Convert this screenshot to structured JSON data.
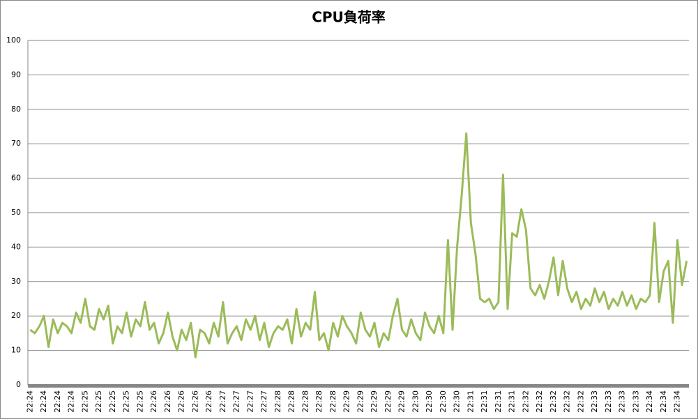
{
  "chart_data": {
    "type": "line",
    "title": "CPU負荷率",
    "color": "#9bbb59",
    "ylim": [
      0,
      100
    ],
    "yticks": [
      0,
      10,
      20,
      30,
      40,
      50,
      60,
      70,
      80,
      90,
      100
    ],
    "grid": true,
    "categories": [
      "22:24",
      null,
      null,
      "22:24",
      null,
      null,
      "22:24",
      null,
      null,
      "22:24",
      null,
      null,
      "22:25",
      null,
      null,
      "22:25",
      null,
      null,
      "22:25",
      null,
      null,
      "22:25",
      null,
      null,
      "22:25",
      null,
      null,
      "22:26",
      null,
      null,
      "22:26",
      null,
      null,
      "22:26",
      null,
      null,
      "22:26",
      null,
      null,
      "22:26",
      null,
      null,
      "22:27",
      null,
      null,
      "22:27",
      null,
      null,
      "22:27",
      null,
      null,
      "22:27",
      null,
      null,
      "22:28",
      null,
      null,
      "22:28",
      null,
      null,
      "22:28",
      null,
      null,
      "22:28",
      null,
      null,
      "22:28",
      null,
      null,
      "22:29",
      null,
      null,
      "22:29",
      null,
      null,
      "22:29",
      null,
      null,
      "22:29",
      null,
      null,
      "22:29",
      null,
      null,
      "22:30",
      null,
      null,
      "22:30",
      null,
      null,
      "22:30",
      null,
      null,
      "22:30",
      null,
      null,
      "22:31",
      null,
      null,
      "22:31",
      null,
      null,
      "22:31",
      null,
      null,
      "22:31",
      null,
      null,
      "22:32",
      null,
      null,
      "22:32",
      null,
      null,
      "22:32",
      null,
      null,
      "22:32",
      null,
      null,
      "22:32",
      null,
      null,
      "22:33",
      null,
      null,
      "22:33",
      null,
      null,
      "22:33",
      null,
      null,
      "22:33",
      null,
      null,
      "22:34",
      null,
      null,
      "22:34",
      null,
      null,
      "22:34",
      null,
      null
    ],
    "values": [
      16,
      15,
      17,
      20,
      11,
      19,
      15,
      18,
      17,
      15,
      21,
      18,
      25,
      17,
      16,
      22,
      19,
      23,
      12,
      17,
      15,
      21,
      14,
      19,
      17,
      24,
      16,
      18,
      12,
      15,
      21,
      14,
      10,
      16,
      13,
      18,
      8,
      16,
      15,
      12,
      18,
      14,
      24,
      12,
      15,
      17,
      13,
      19,
      16,
      20,
      13,
      18,
      11,
      15,
      17,
      16,
      19,
      12,
      22,
      14,
      18,
      16,
      27,
      13,
      15,
      10,
      18,
      14,
      20,
      17,
      15,
      12,
      21,
      16,
      14,
      18,
      11,
      15,
      13,
      20,
      25,
      16,
      14,
      19,
      15,
      13,
      21,
      17,
      15,
      20,
      15,
      42,
      16,
      40,
      55,
      73,
      47,
      38,
      25,
      24,
      25,
      22,
      24,
      61,
      22,
      44,
      43,
      51,
      45,
      28,
      26,
      29,
      25,
      30,
      37,
      26,
      36,
      28,
      24,
      27,
      22,
      25,
      23,
      28,
      24,
      27,
      22,
      25,
      23,
      27,
      23,
      26,
      22,
      25,
      24,
      26,
      47,
      24,
      33,
      36,
      18,
      42,
      29,
      36
    ]
  }
}
